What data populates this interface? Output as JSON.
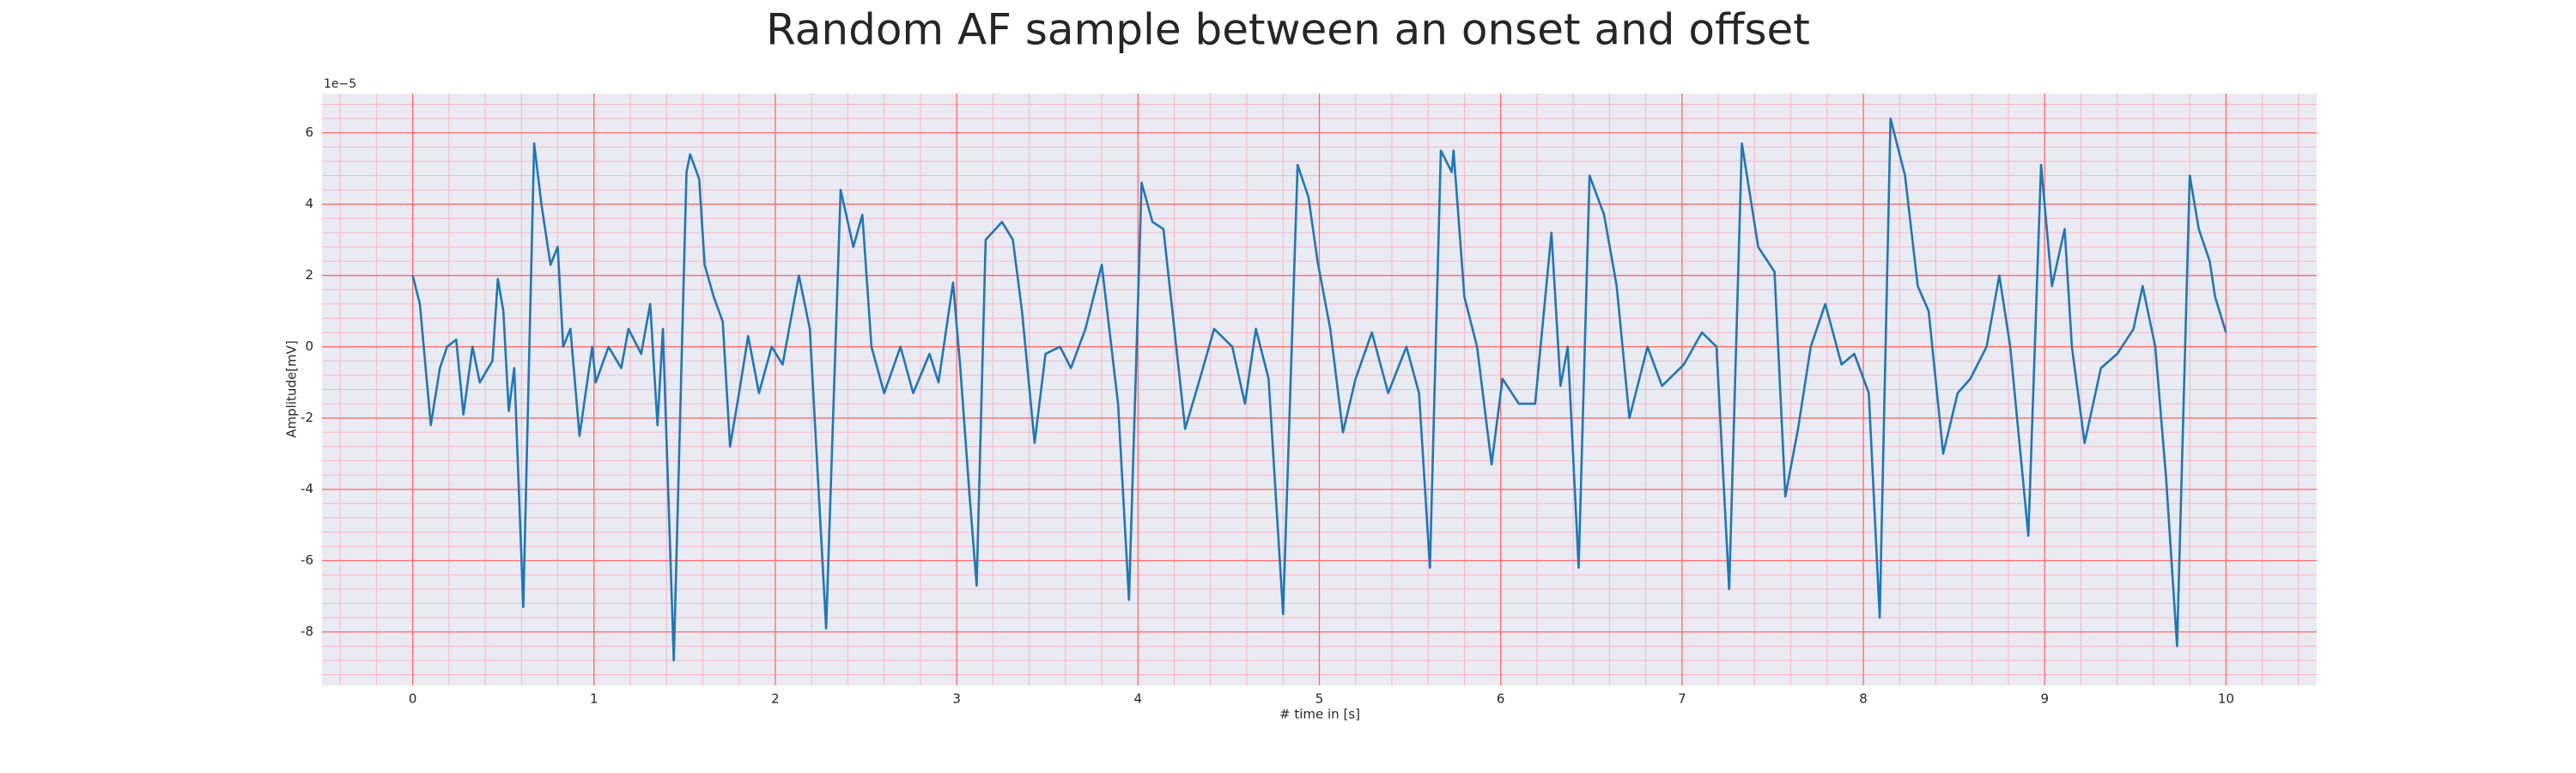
{
  "chart_data": {
    "type": "line",
    "title": "Random AF sample between an onset and offset",
    "x_label": "# time in [s]",
    "y_label": "Amplitude[mV]",
    "y_offset_label": "1e−5",
    "color": "#1f77b4",
    "grid": true,
    "minor_grid": true,
    "grid_color": "#ff6b6b",
    "minor_grid_color": "#f4b8c8",
    "background": "#eaeaf2",
    "xlim": [
      -0.5,
      10.5
    ],
    "ylim": [
      -9.5,
      7.1
    ],
    "xticks": [
      0,
      1,
      2,
      3,
      4,
      5,
      6,
      7,
      8,
      9,
      10
    ],
    "yticks": [
      -8,
      -6,
      -4,
      -2,
      0,
      2,
      4,
      6
    ],
    "x": [
      0,
      0.04,
      0.1,
      0.15,
      0.19,
      0.24,
      0.28,
      0.33,
      0.37,
      0.44,
      0.47,
      0.5,
      0.53,
      0.56,
      0.61,
      0.67,
      0.71,
      0.76,
      0.8,
      0.83,
      0.87,
      0.92,
      0.99,
      1.01,
      1.08,
      1.15,
      1.19,
      1.26,
      1.31,
      1.35,
      1.38,
      1.44,
      1.51,
      1.53,
      1.58,
      1.61,
      1.66,
      1.71,
      1.75,
      1.8,
      1.85,
      1.91,
      1.98,
      2.04,
      2.13,
      2.19,
      2.28,
      2.36,
      2.43,
      2.48,
      2.53,
      2.6,
      2.69,
      2.76,
      2.85,
      2.9,
      2.98,
      3.02,
      3.07,
      3.11,
      3.16,
      3.25,
      3.31,
      3.36,
      3.43,
      3.49,
      3.57,
      3.63,
      3.71,
      3.8,
      3.89,
      3.95,
      4.02,
      4.08,
      4.14,
      4.2,
      4.26,
      4.33,
      4.42,
      4.52,
      4.59,
      4.65,
      4.72,
      4.8,
      4.88,
      4.94,
      4.99,
      5.06,
      5.13,
      5.2,
      5.29,
      5.38,
      5.48,
      5.55,
      5.61,
      5.67,
      5.73,
      5.74,
      5.8,
      5.87,
      5.95,
      6.01,
      6.1,
      6.19,
      6.28,
      6.33,
      6.37,
      6.43,
      6.49,
      6.57,
      6.64,
      6.71,
      6.81,
      6.89,
      7.01,
      7.11,
      7.19,
      7.26,
      7.33,
      7.42,
      7.51,
      7.57,
      7.64,
      7.71,
      7.79,
      7.88,
      7.95,
      8.03,
      8.09,
      8.15,
      8.23,
      8.3,
      8.36,
      8.44,
      8.52,
      8.59,
      8.68,
      8.75,
      8.81,
      8.91,
      8.98,
      9.04,
      9.11,
      9.15,
      9.22,
      9.31,
      9.4,
      9.49,
      9.54,
      9.61,
      9.67,
      9.73,
      9.8,
      9.85,
      9.91,
      9.94,
      10.0
    ],
    "values": [
      2.0,
      1.2,
      -2.2,
      -0.6,
      0,
      0.2,
      -1.9,
      0,
      -1,
      -0.4,
      1.9,
      1,
      -1.8,
      -0.6,
      -7.3,
      5.7,
      4.0,
      2.3,
      2.8,
      0,
      0.5,
      -2.5,
      0,
      -1,
      0,
      -0.6,
      0.5,
      -0.2,
      1.2,
      -2.2,
      0.5,
      -8.8,
      4.9,
      5.4,
      4.7,
      2.3,
      1.4,
      0.7,
      -2.8,
      -1.3,
      0.3,
      -1.3,
      0,
      -0.5,
      2.0,
      0.5,
      -7.9,
      4.4,
      2.8,
      3.7,
      0,
      -1.3,
      0,
      -1.3,
      -0.2,
      -1,
      1.8,
      -0.6,
      -4.1,
      -6.7,
      3.0,
      3.5,
      3.0,
      1.0,
      -2.7,
      -0.2,
      0,
      -0.6,
      0.5,
      2.3,
      -1.6,
      -7.1,
      4.6,
      3.5,
      3.3,
      0.5,
      -2.3,
      -1.1,
      0.5,
      0,
      -1.6,
      0.5,
      -0.9,
      -7.5,
      5.1,
      4.2,
      2.4,
      0.5,
      -2.4,
      -0.9,
      0.4,
      -1.3,
      0,
      -1.3,
      -6.2,
      5.5,
      4.9,
      5.5,
      1.4,
      0,
      -3.3,
      -0.9,
      -1.6,
      -1.6,
      3.2,
      -1.1,
      0,
      -6.2,
      4.8,
      3.7,
      1.7,
      -2.0,
      0,
      -1.1,
      -0.5,
      0.4,
      0,
      -6.8,
      5.7,
      2.8,
      2.1,
      -4.2,
      -2.3,
      0,
      1.2,
      -0.5,
      -0.2,
      -1.3,
      -7.6,
      6.4,
      4.8,
      1.7,
      1.0,
      -3.0,
      -1.3,
      -0.9,
      0,
      2.0,
      0,
      -5.3,
      5.1,
      1.7,
      3.3,
      0,
      -2.7,
      -0.6,
      -0.2,
      0.5,
      1.7,
      0,
      -3.7,
      -8.4,
      4.8,
      3.3,
      2.4,
      1.4,
      0.4
    ]
  }
}
